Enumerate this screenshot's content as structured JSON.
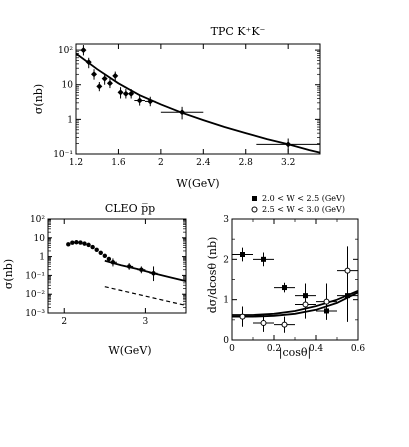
{
  "chart_data": [
    {
      "type": "scatter",
      "title": "TPC  K⁺K⁻",
      "xlabel": "W(GeV)",
      "ylabel": "σ(nb)",
      "xlim": [
        1.2,
        3.5
      ],
      "ylim": [
        0.1,
        150
      ],
      "yscale": "log",
      "x_ticks": [
        "1.2",
        "1.6",
        "2",
        "2.4",
        "2.8",
        "3.2"
      ],
      "y_ticks": [
        "10⁻¹",
        "1",
        "10",
        "10²"
      ],
      "points": [
        {
          "x": 1.27,
          "y": 100,
          "xerr": 0.02,
          "ylo": 70,
          "yhi": 140
        },
        {
          "x": 1.32,
          "y": 45,
          "xerr": 0.02,
          "ylo": 30,
          "yhi": 60
        },
        {
          "x": 1.37,
          "y": 20,
          "xerr": 0.02,
          "ylo": 14,
          "yhi": 28
        },
        {
          "x": 1.42,
          "y": 9,
          "xerr": 0.02,
          "ylo": 6.5,
          "yhi": 12
        },
        {
          "x": 1.47,
          "y": 15,
          "xerr": 0.02,
          "ylo": 10,
          "yhi": 20
        },
        {
          "x": 1.52,
          "y": 11,
          "xerr": 0.02,
          "ylo": 8,
          "yhi": 15
        },
        {
          "x": 1.57,
          "y": 18,
          "xerr": 0.02,
          "ylo": 12,
          "yhi": 24
        },
        {
          "x": 1.62,
          "y": 6,
          "xerr": 0.02,
          "ylo": 4,
          "yhi": 8.5
        },
        {
          "x": 1.67,
          "y": 5.5,
          "xerr": 0.02,
          "ylo": 4,
          "yhi": 7.5
        },
        {
          "x": 1.72,
          "y": 5.5,
          "xerr": 0.02,
          "ylo": 4,
          "yhi": 7.5
        },
        {
          "x": 1.8,
          "y": 3.5,
          "xerr": 0.05,
          "ylo": 2.5,
          "yhi": 5
        },
        {
          "x": 1.9,
          "y": 3.3,
          "xerr": 0.05,
          "ylo": 2.4,
          "yhi": 4.5
        },
        {
          "x": 2.2,
          "y": 1.6,
          "xerr": 0.2,
          "ylo": 1.0,
          "yhi": 2.3
        },
        {
          "x": 3.2,
          "y": 0.19,
          "xerr": 0.3,
          "ylo": 0.11,
          "yhi": 0.28
        }
      ],
      "curve": {
        "x": [
          1.2,
          1.4,
          1.6,
          1.8,
          2.0,
          2.2,
          2.4,
          2.6,
          2.8,
          3.0,
          3.2,
          3.4,
          3.5
        ],
        "y": [
          80,
          28,
          11,
          5,
          2.7,
          1.55,
          0.95,
          0.6,
          0.4,
          0.27,
          0.19,
          0.13,
          0.11
        ]
      }
    },
    {
      "type": "scatter",
      "title": "CLEO  p̅p",
      "xlabel": "W(GeV)",
      "ylabel": "σ(nb)",
      "xlim": [
        1.8,
        3.5
      ],
      "ylim": [
        0.001,
        100
      ],
      "yscale": "log",
      "x_ticks": [
        "2",
        "3"
      ],
      "y_ticks": [
        "10⁻³",
        "10⁻²",
        "10⁻¹",
        "1",
        "10",
        "10²"
      ],
      "points": [
        {
          "x": 2.05,
          "y": 4.5
        },
        {
          "x": 2.1,
          "y": 5.5
        },
        {
          "x": 2.15,
          "y": 5.8
        },
        {
          "x": 2.2,
          "y": 5.6
        },
        {
          "x": 2.25,
          "y": 4.9
        },
        {
          "x": 2.3,
          "y": 4.2
        },
        {
          "x": 2.35,
          "y": 3.2
        },
        {
          "x": 2.4,
          "y": 2.3
        },
        {
          "x": 2.45,
          "y": 1.6
        },
        {
          "x": 2.5,
          "y": 1.1
        },
        {
          "x": 2.55,
          "y": 0.75
        },
        {
          "x": 2.6,
          "y": 0.5,
          "ylo": 0.3,
          "yhi": 0.8
        },
        {
          "x": 2.8,
          "y": 0.3,
          "ylo": 0.2,
          "yhi": 0.45
        },
        {
          "x": 2.95,
          "y": 0.2,
          "ylo": 0.13,
          "yhi": 0.3
        },
        {
          "x": 3.1,
          "y": 0.13,
          "ylo": 0.05,
          "yhi": 0.3
        }
      ],
      "curve": {
        "x": [
          2.5,
          2.7,
          2.9,
          3.1,
          3.3,
          3.5
        ],
        "y": [
          0.6,
          0.35,
          0.22,
          0.13,
          0.08,
          0.05
        ]
      },
      "dashed": {
        "x": [
          2.5,
          3.5
        ],
        "y": [
          0.025,
          0.0025
        ]
      }
    },
    {
      "type": "scatter",
      "xlabel": "|cosθ|",
      "ylabel": "dσ/dcosθ (nb)",
      "xlim": [
        0,
        0.6
      ],
      "ylim": [
        0,
        3
      ],
      "x_ticks": [
        "0",
        "0.2",
        "0.4",
        "0.6"
      ],
      "y_ticks": [
        "0",
        "1",
        "2",
        "3"
      ],
      "legend_position": "top",
      "series": [
        {
          "name": "2.0 < W < 2.5 (GeV)",
          "marker": "filled-square",
          "points": [
            {
              "x": 0.05,
              "y": 2.12,
              "xerr": 0.05,
              "yerr": 0.17
            },
            {
              "x": 0.15,
              "y": 2.0,
              "xerr": 0.05,
              "yerr": 0.17
            },
            {
              "x": 0.25,
              "y": 1.3,
              "xerr": 0.05,
              "yerr": 0.12
            },
            {
              "x": 0.35,
              "y": 1.1,
              "xerr": 0.05,
              "yerr": 0.3
            },
            {
              "x": 0.45,
              "y": 0.72,
              "xerr": 0.05,
              "yerr": 0.2
            },
            {
              "x": 0.55,
              "y": 1.1,
              "xerr": 0.05,
              "yerr": 0.65
            }
          ]
        },
        {
          "name": "2.5 < W < 3.0 (GeV)",
          "marker": "open-circle",
          "points": [
            {
              "x": 0.05,
              "y": 0.58,
              "xerr": 0.05,
              "yerr": 0.25
            },
            {
              "x": 0.15,
              "y": 0.42,
              "xerr": 0.05,
              "yerr": 0.22
            },
            {
              "x": 0.25,
              "y": 0.38,
              "xerr": 0.05,
              "yerr": 0.2
            },
            {
              "x": 0.35,
              "y": 0.88,
              "xerr": 0.05,
              "yerr": 0.35
            },
            {
              "x": 0.45,
              "y": 0.95,
              "xerr": 0.05,
              "yerr": 0.45
            },
            {
              "x": 0.55,
              "y": 1.72,
              "xerr": 0.05,
              "yerr": 0.6
            }
          ]
        }
      ],
      "curves": [
        {
          "x": [
            0,
            0.1,
            0.2,
            0.3,
            0.4,
            0.5,
            0.6
          ],
          "y": [
            0.58,
            0.58,
            0.6,
            0.65,
            0.75,
            0.92,
            1.18
          ]
        },
        {
          "x": [
            0,
            0.1,
            0.2,
            0.3,
            0.4,
            0.5,
            0.6
          ],
          "y": [
            0.62,
            0.62,
            0.65,
            0.72,
            0.84,
            1.0,
            1.22
          ]
        }
      ]
    }
  ]
}
